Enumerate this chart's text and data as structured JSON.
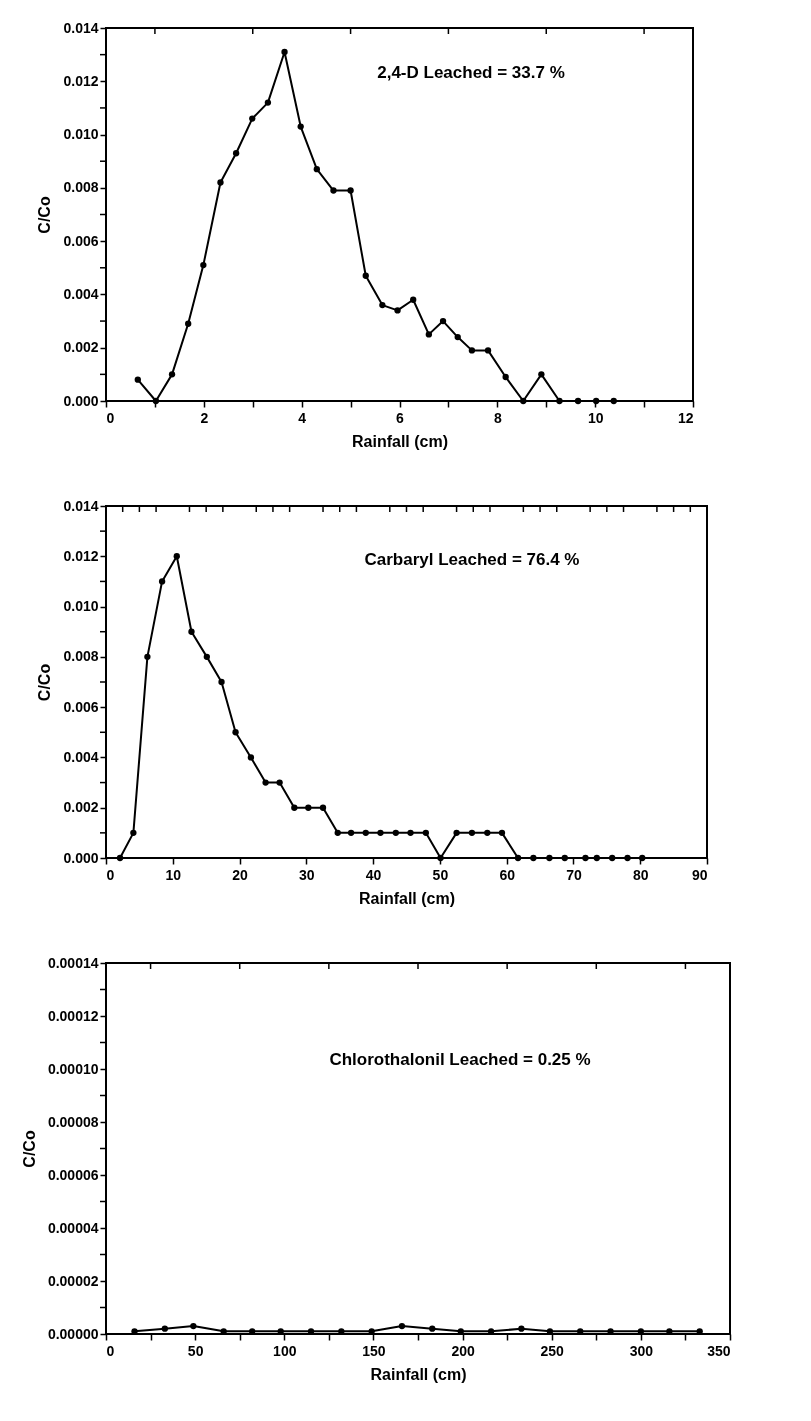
{
  "chart_data": [
    {
      "type": "line",
      "xlabel": "Rainfall (cm)",
      "ylabel": "C/Co",
      "annotations": [
        "2,4-D Leached = 33.7 %"
      ],
      "marker": "circle",
      "x": [
        0.65,
        1.02,
        1.35,
        1.68,
        1.99,
        2.34,
        2.66,
        2.99,
        3.31,
        3.65,
        3.98,
        4.31,
        4.65,
        5.0,
        5.31,
        5.65,
        5.96,
        6.28,
        6.6,
        6.89,
        7.19,
        7.48,
        7.81,
        8.17,
        8.53,
        8.9,
        9.27,
        9.65,
        10.02,
        10.38
      ],
      "series": [
        {
          "color": "#000000",
          "values": [
            0.0008,
            0,
            0.001,
            0.0029,
            0.0051,
            0.0082,
            0.0093,
            0.0106,
            0.0112,
            0.0131,
            0.0103,
            0.0087,
            0.0079,
            0.0079,
            0.0047,
            0.0036,
            0.0034,
            0.0038,
            0.0025,
            0.003,
            0.0024,
            0.0019,
            0.0019,
            0.0009,
            0,
            0.001,
            0,
            0,
            0,
            0
          ]
        }
      ],
      "xlim": [
        0,
        12
      ],
      "xticks": [
        0,
        {
          "value": 1,
          "label": null
        },
        2,
        {
          "value": 3,
          "label": null
        },
        4,
        {
          "value": 5,
          "label": null
        },
        6,
        {
          "value": 7,
          "label": null
        },
        8,
        {
          "value": 9,
          "label": null
        },
        10,
        {
          "value": 11,
          "label": null
        },
        12
      ],
      "ylim": [
        0,
        0.014
      ],
      "yticks": [
        {
          "value": 0,
          "label": "0.000"
        },
        {
          "value": 0.001,
          "label": null
        },
        {
          "value": 0.002,
          "label": "0.002"
        },
        {
          "value": 0.003,
          "label": null
        },
        {
          "value": 0.004,
          "label": "0.004"
        },
        {
          "value": 0.005,
          "label": null
        },
        {
          "value": 0.006,
          "label": "0.006"
        },
        {
          "value": 0.007,
          "label": null
        },
        {
          "value": 0.008,
          "label": "0.008"
        },
        {
          "value": 0.009,
          "label": null
        },
        {
          "value": 0.01,
          "label": "0.010"
        },
        {
          "value": 0.011,
          "label": null
        },
        {
          "value": 0.012,
          "label": "0.012"
        },
        {
          "value": 0.013,
          "label": null
        },
        {
          "value": 0.014,
          "label": "0.014"
        }
      ]
    },
    {
      "type": "line",
      "xlabel": "Rainfall (cm)",
      "ylabel": "C/Co",
      "annotations": [
        "Carbaryl Leached = 76.4 %"
      ],
      "marker": "circle",
      "x": [
        2.1,
        4.1,
        6.2,
        8.4,
        10.6,
        12.8,
        15.1,
        17.3,
        19.4,
        21.7,
        23.9,
        26.0,
        28.2,
        30.3,
        32.5,
        34.7,
        36.7,
        38.9,
        41.1,
        43.4,
        45.6,
        47.9,
        50.1,
        52.5,
        54.8,
        57.1,
        59.3,
        61.7,
        64.0,
        66.4,
        68.7,
        71.8,
        73.5,
        75.8,
        78.1,
        80.3
      ],
      "series": [
        {
          "color": "#000000",
          "values": [
            0,
            0.001,
            0.008,
            0.011,
            0.012,
            0.009,
            0.008,
            0.007,
            0.005,
            0.004,
            0.003,
            0.003,
            0.002,
            0.002,
            0.002,
            0.001,
            0.001,
            0.001,
            0.001,
            0.001,
            0.001,
            0.001,
            0,
            0.001,
            0.001,
            0.001,
            0.001,
            0,
            0,
            0,
            0,
            0,
            0,
            0,
            0,
            0
          ]
        }
      ],
      "xlim": [
        0,
        90
      ],
      "xticks": [
        0,
        {
          "value": 2.5,
          "label": null
        },
        {
          "value": 5,
          "label": null
        },
        {
          "value": 7.5,
          "label": null
        },
        10,
        {
          "value": 12.5,
          "label": null
        },
        {
          "value": 15,
          "label": null
        },
        {
          "value": 17.5,
          "label": null
        },
        20,
        {
          "value": 22.5,
          "label": null
        },
        {
          "value": 25,
          "label": null
        },
        {
          "value": 27.5,
          "label": null
        },
        30,
        {
          "value": 32.5,
          "label": null
        },
        {
          "value": 35,
          "label": null
        },
        {
          "value": 37.5,
          "label": null
        },
        40,
        {
          "value": 42.5,
          "label": null
        },
        {
          "value": 45,
          "label": null
        },
        {
          "value": 47.5,
          "label": null
        },
        50,
        {
          "value": 52.5,
          "label": null
        },
        {
          "value": 55,
          "label": null
        },
        {
          "value": 57.5,
          "label": null
        },
        60,
        {
          "value": 62.5,
          "label": null
        },
        {
          "value": 65,
          "label": null
        },
        {
          "value": 67.5,
          "label": null
        },
        70,
        {
          "value": 72.5,
          "label": null
        },
        {
          "value": 75,
          "label": null
        },
        {
          "value": 77.5,
          "label": null
        },
        80,
        {
          "value": 82.5,
          "label": null
        },
        {
          "value": 85,
          "label": null
        },
        {
          "value": 87.5,
          "label": null
        },
        90
      ],
      "ylim": [
        0,
        0.014
      ],
      "yticks": [
        {
          "value": 0,
          "label": "0.000"
        },
        {
          "value": 0.001,
          "label": null
        },
        {
          "value": 0.002,
          "label": "0.002"
        },
        {
          "value": 0.003,
          "label": null
        },
        {
          "value": 0.004,
          "label": "0.004"
        },
        {
          "value": 0.005,
          "label": null
        },
        {
          "value": 0.006,
          "label": "0.006"
        },
        {
          "value": 0.007,
          "label": null
        },
        {
          "value": 0.008,
          "label": "0.008"
        },
        {
          "value": 0.009,
          "label": null
        },
        {
          "value": 0.01,
          "label": "0.010"
        },
        {
          "value": 0.011,
          "label": null
        },
        {
          "value": 0.012,
          "label": "0.012"
        },
        {
          "value": 0.013,
          "label": null
        },
        {
          "value": 0.014,
          "label": "0.014"
        }
      ]
    },
    {
      "type": "line",
      "xlabel": "Rainfall (cm)",
      "ylabel": "C/Co",
      "annotations": [
        "Chlorothalonil Leached = 0.25 %"
      ],
      "marker": "circle",
      "x": [
        16,
        33,
        49,
        66,
        82,
        98,
        115,
        132,
        149,
        166,
        183,
        199,
        216,
        233,
        249,
        266,
        283,
        300,
        316,
        333
      ],
      "series": [
        {
          "color": "#000000",
          "values": [
            1e-06,
            2e-06,
            3e-06,
            1e-06,
            1e-06,
            1e-06,
            1e-06,
            1e-06,
            1e-06,
            3e-06,
            2e-06,
            1e-06,
            1e-06,
            2e-06,
            1e-06,
            1e-06,
            1e-06,
            1e-06,
            1e-06,
            1e-06
          ]
        }
      ],
      "xlim": [
        0,
        350
      ],
      "xticks": [
        0,
        {
          "value": 25,
          "label": null
        },
        50,
        {
          "value": 75,
          "label": null
        },
        100,
        {
          "value": 125,
          "label": null
        },
        150,
        {
          "value": 175,
          "label": null
        },
        200,
        {
          "value": 225,
          "label": null
        },
        250,
        {
          "value": 275,
          "label": null
        },
        300,
        {
          "value": 325,
          "label": null
        },
        350
      ],
      "ylim": [
        0,
        0.00014
      ],
      "yticks": [
        {
          "value": 0,
          "label": "0.00000"
        },
        {
          "value": 1e-05,
          "label": null
        },
        {
          "value": 2e-05,
          "label": "0.00002"
        },
        {
          "value": 3e-05,
          "label": null
        },
        {
          "value": 4e-05,
          "label": "0.00004"
        },
        {
          "value": 5e-05,
          "label": null
        },
        {
          "value": 6e-05,
          "label": "0.00006"
        },
        {
          "value": 7e-05,
          "label": null
        },
        {
          "value": 8e-05,
          "label": "0.00008"
        },
        {
          "value": 9e-05,
          "label": null
        },
        {
          "value": 0.0001,
          "label": "0.00010"
        },
        {
          "value": 0.00011,
          "label": null
        },
        {
          "value": 0.00012,
          "label": "0.00012"
        },
        {
          "value": 0.00013,
          "label": null
        },
        {
          "value": 0.00014,
          "label": "0.00014"
        }
      ]
    }
  ]
}
